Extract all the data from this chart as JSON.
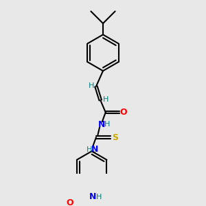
{
  "bg_color": "#e8e8e8",
  "bond_color": "#000000",
  "atom_colors": {
    "O": "#ff0000",
    "N": "#0000ff",
    "S": "#ccaa00",
    "H": "#008080",
    "C": "#000000"
  },
  "line_width": 1.5,
  "figsize": [
    3.0,
    3.0
  ],
  "dpi": 100
}
